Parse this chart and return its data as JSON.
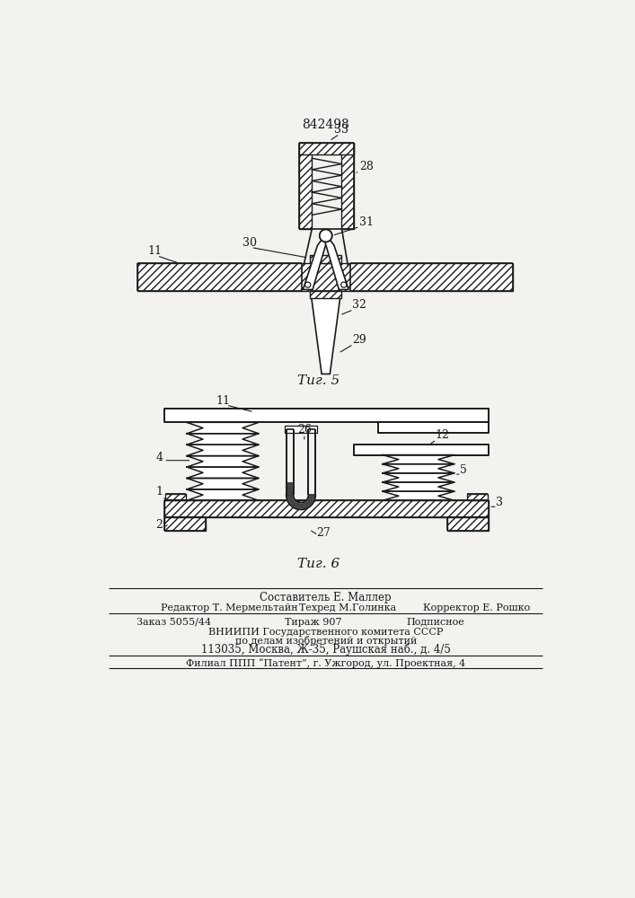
{
  "patent_number": "842498",
  "fig5_label": "Τиг. 5",
  "fig6_label": "Τиг. 6",
  "bg_color": "#f4f2ee",
  "line_color": "#1a1a1a",
  "footer_lines": [
    "Составитель Е. Маллер",
    "Редактор Т. Мермельтайн",
    "Техред М.Голинка",
    "Корректор Е. Рошко",
    "Заказ 5055/44",
    "Тираж 907",
    "Подписное",
    "ВНИИПИ Государственного комитета СССР",
    "по делам изобретений и открытий",
    "113035, Москва, Ж-35, Раушская наб., д. 4/5",
    "Филиал ППП “Патент”, г. Ужгород, ул. Проектная, 4"
  ]
}
